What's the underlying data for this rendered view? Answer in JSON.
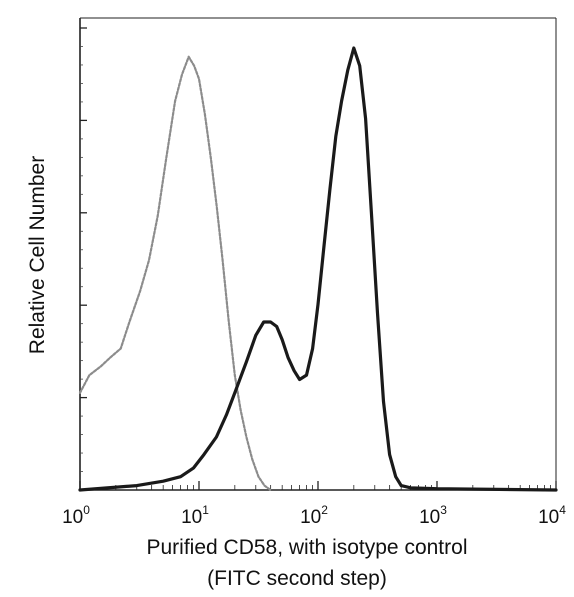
{
  "chart_data": {
    "type": "line",
    "title": "",
    "xlabel": "Purified CD58, with isotype control",
    "xlabel_line2": "(FITC second step)",
    "ylabel": "Relative Cell Number",
    "x_scale": "log",
    "xlim": [
      1,
      10000
    ],
    "ylim": [
      0,
      100
    ],
    "x_ticks": [
      {
        "value": 1,
        "base": "10",
        "exp": "0"
      },
      {
        "value": 10,
        "base": "10",
        "exp": "1"
      },
      {
        "value": 100,
        "base": "10",
        "exp": "2"
      },
      {
        "value": 1000,
        "base": "10",
        "exp": "3"
      },
      {
        "value": 10000,
        "base": "10",
        "exp": "4"
      }
    ],
    "y_ticks_labeled": false,
    "grid": false,
    "legend": "none",
    "series": [
      {
        "style": "light-gray",
        "color": "#8c8c8c",
        "x": [
          1,
          1.2,
          1.5,
          1.8,
          2.2,
          2.6,
          3.2,
          3.8,
          4.5,
          5.3,
          6.3,
          7.2,
          8.2,
          9.1,
          10,
          11.2,
          12.6,
          14.1,
          15.8,
          17.8,
          20,
          22.4,
          25,
          28,
          31.6,
          35.5,
          40
        ],
        "y": [
          22,
          26,
          28,
          30,
          32,
          38,
          45,
          52,
          62,
          75,
          88,
          94,
          98,
          96,
          93,
          85,
          75,
          64,
          52,
          38,
          26,
          18,
          12,
          7,
          3,
          1,
          0
        ]
      },
      {
        "style": "dark",
        "color": "#1a1a1a",
        "x": [
          1,
          3,
          5,
          7,
          9,
          11,
          14,
          17,
          20,
          25,
          30,
          35,
          40,
          45,
          50,
          56,
          63,
          70,
          80,
          90,
          100,
          112,
          126,
          141,
          158,
          178,
          200,
          224,
          251,
          282,
          316,
          355,
          400,
          450,
          500,
          600,
          1000,
          10000
        ],
        "y": [
          0,
          1,
          2,
          3,
          5,
          8,
          12,
          17,
          22,
          29,
          35,
          38,
          38,
          37,
          34,
          30,
          27,
          25,
          26,
          32,
          42,
          55,
          68,
          80,
          88,
          95,
          100,
          96,
          84,
          62,
          40,
          20,
          8,
          3,
          1,
          0.5,
          0.3,
          0
        ]
      }
    ]
  }
}
